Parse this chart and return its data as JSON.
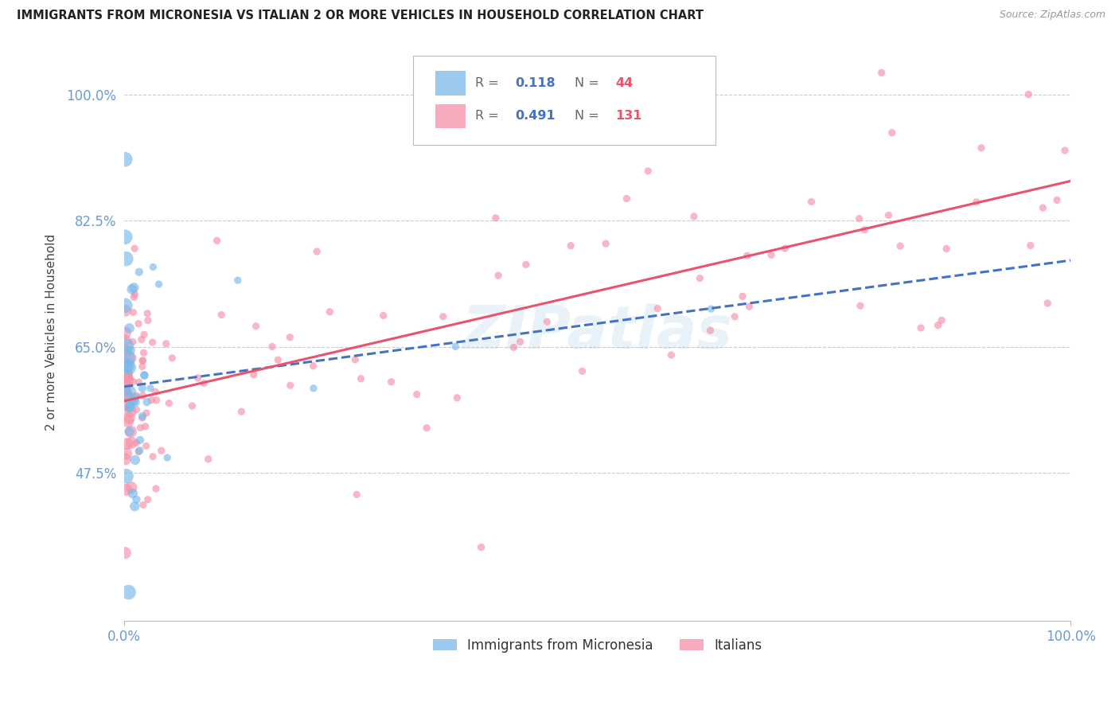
{
  "title": "IMMIGRANTS FROM MICRONESIA VS ITALIAN 2 OR MORE VEHICLES IN HOUSEHOLD CORRELATION CHART",
  "source": "Source: ZipAtlas.com",
  "ylabel": "2 or more Vehicles in Household",
  "micronesia_color": "#7ab8e8",
  "italian_color": "#f590a8",
  "micronesia_line_color": "#4472c4",
  "italian_line_color": "#e8536e",
  "micronesia_R": 0.118,
  "micronesia_N": 44,
  "italian_R": 0.491,
  "italian_N": 131,
  "legend_label_micronesia": "Immigrants from Micronesia",
  "legend_label_italian": "Italians",
  "grid_color": "#cccccc",
  "background_color": "#ffffff",
  "title_color": "#222222",
  "axis_label_color": "#6b9bd2",
  "ytick_color": "#6b9bd2",
  "xlim": [
    0.0,
    1.0
  ],
  "ylim": [
    0.27,
    1.07
  ],
  "ytick_vals": [
    0.475,
    0.65,
    0.825,
    1.0
  ],
  "ytick_labels": [
    "47.5%",
    "65.0%",
    "82.5%",
    "100.0%"
  ],
  "mic_line_start_y": 0.595,
  "mic_line_end_y": 0.77,
  "ita_line_start_y": 0.575,
  "ita_line_end_y": 0.88
}
